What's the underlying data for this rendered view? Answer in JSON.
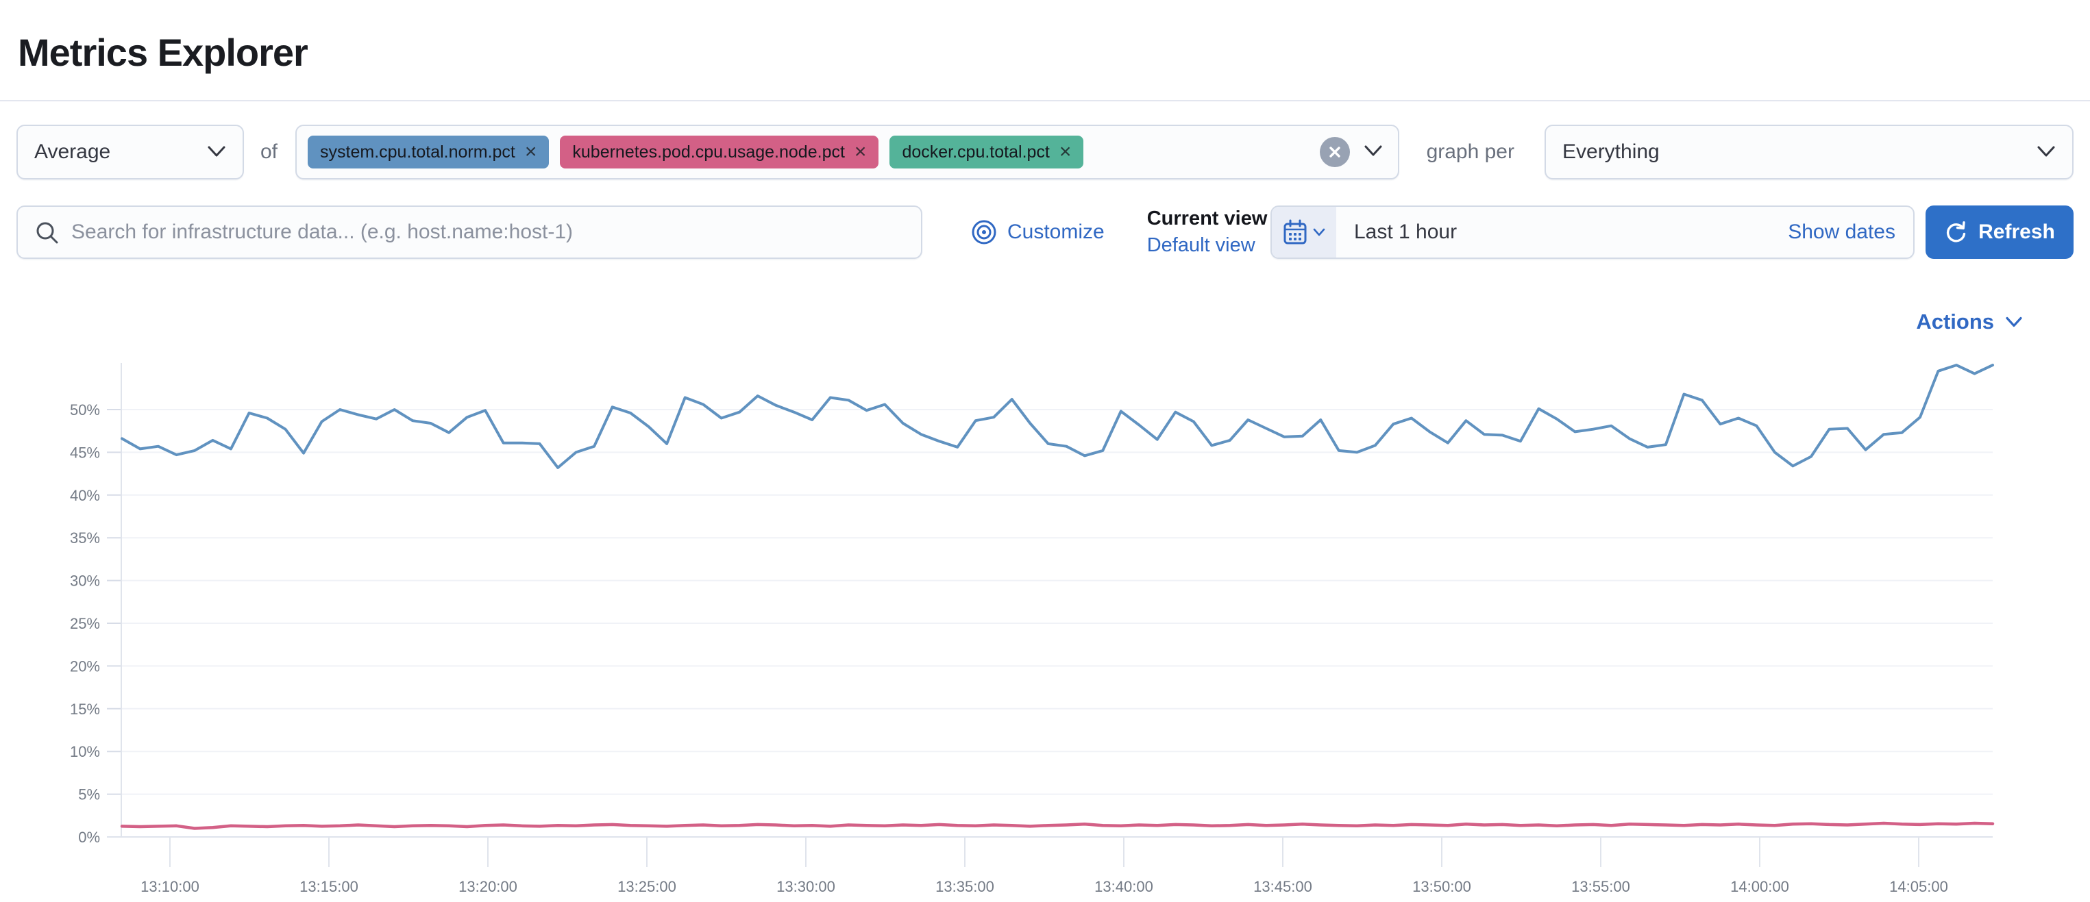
{
  "page": {
    "title": "Metrics Explorer"
  },
  "controls": {
    "aggregation": {
      "value": "Average"
    },
    "of_label": "of",
    "metrics": [
      {
        "label": "system.cpu.total.norm.pct",
        "color": "#6092C0",
        "remove_icon": "cross"
      },
      {
        "label": "kubernetes.pod.cpu.usage.node.pct",
        "color": "#D36086",
        "remove_icon": "cross"
      },
      {
        "label": "docker.cpu.total.pct",
        "color": "#54B399",
        "remove_icon": "cross"
      }
    ],
    "graph_per_label": "graph per",
    "group_by": {
      "value": "Everything"
    }
  },
  "search": {
    "placeholder": "Search for infrastructure data... (e.g. host.name:host-1)"
  },
  "view": {
    "customize_label": "Customize",
    "current_view_label": "Current view",
    "default_view_label": "Default view"
  },
  "time": {
    "value": "Last 1 hour",
    "show_dates_label": "Show dates",
    "refresh_label": "Refresh"
  },
  "chart": {
    "actions_label": "Actions"
  },
  "colors": {
    "link_blue": "#3068c3",
    "button_blue": "#2e70c8",
    "axis_label": "#747b86",
    "grid_line": "#f0f2f7",
    "axis_line": "#e0e4ec"
  },
  "chart_data": {
    "type": "line",
    "title": "",
    "xlabel": "",
    "ylabel": "",
    "ylim": [
      0,
      55.5
    ],
    "grid": true,
    "legend": false,
    "y_ticks": [
      "0%",
      "5%",
      "10%",
      "15%",
      "20%",
      "25%",
      "30%",
      "35%",
      "40%",
      "45%",
      "50%"
    ],
    "x_ticks": [
      "13:10:00",
      "13:15:00",
      "13:20:00",
      "13:25:00",
      "13:30:00",
      "13:35:00",
      "13:40:00",
      "13:45:00",
      "13:50:00",
      "13:55:00",
      "14:00:00",
      "14:05:00"
    ],
    "x_range": [
      "~13:08:00",
      "~14:07:00"
    ],
    "series": [
      {
        "name": "system.cpu.total.norm.pct (Average)",
        "color": "#6092C0",
        "unit": "%",
        "values": [
          46.6,
          45.4,
          45.7,
          44.7,
          45.2,
          46.4,
          45.4,
          49.6,
          49.0,
          47.7,
          44.9,
          48.6,
          50.0,
          49.4,
          48.9,
          50.0,
          48.7,
          48.4,
          47.3,
          49.1,
          49.9,
          46.1,
          46.1,
          46.0,
          43.2,
          45.0,
          45.7,
          50.3,
          49.6,
          48.0,
          46.0,
          51.4,
          50.6,
          49.0,
          49.7,
          51.6,
          50.5,
          49.7,
          48.8,
          51.4,
          51.1,
          49.9,
          50.6,
          48.4,
          47.1,
          46.3,
          45.6,
          48.7,
          49.1,
          51.2,
          48.4,
          46.0,
          45.7,
          44.6,
          45.2,
          49.8,
          48.2,
          46.5,
          49.7,
          48.6,
          45.8,
          46.4,
          48.8,
          47.8,
          46.8,
          46.9,
          48.8,
          45.2,
          45.0,
          45.8,
          48.3,
          49.0,
          47.4,
          46.1,
          48.7,
          47.1,
          47.0,
          46.3,
          50.1,
          48.9,
          47.4,
          47.7,
          48.1,
          46.6,
          45.6,
          45.9,
          51.8,
          51.1,
          48.3,
          49.0,
          48.1,
          45.0,
          43.4,
          44.5,
          47.7,
          47.8,
          45.3,
          47.1,
          47.3,
          49.1,
          54.5,
          55.2,
          54.2,
          55.2
        ]
      },
      {
        "name": "kubernetes.pod.cpu.usage.node.pct (Average)",
        "color": "#D36086",
        "unit": "%",
        "values": [
          1.25,
          1.2,
          1.25,
          1.3,
          1.0,
          1.1,
          1.3,
          1.25,
          1.2,
          1.3,
          1.35,
          1.25,
          1.3,
          1.4,
          1.3,
          1.2,
          1.3,
          1.35,
          1.3,
          1.2,
          1.35,
          1.4,
          1.3,
          1.25,
          1.35,
          1.3,
          1.4,
          1.45,
          1.35,
          1.3,
          1.25,
          1.35,
          1.4,
          1.3,
          1.35,
          1.45,
          1.4,
          1.3,
          1.35,
          1.25,
          1.4,
          1.35,
          1.3,
          1.4,
          1.35,
          1.45,
          1.35,
          1.3,
          1.4,
          1.35,
          1.25,
          1.35,
          1.4,
          1.5,
          1.35,
          1.3,
          1.4,
          1.35,
          1.45,
          1.4,
          1.3,
          1.35,
          1.45,
          1.35,
          1.4,
          1.5,
          1.4,
          1.35,
          1.3,
          1.4,
          1.35,
          1.45,
          1.4,
          1.35,
          1.5,
          1.4,
          1.45,
          1.35,
          1.4,
          1.3,
          1.4,
          1.45,
          1.35,
          1.5,
          1.45,
          1.4,
          1.35,
          1.45,
          1.4,
          1.5,
          1.4,
          1.35,
          1.5,
          1.55,
          1.45,
          1.4,
          1.5,
          1.6,
          1.5,
          1.45,
          1.55,
          1.5,
          1.6,
          1.55
        ]
      }
    ]
  }
}
